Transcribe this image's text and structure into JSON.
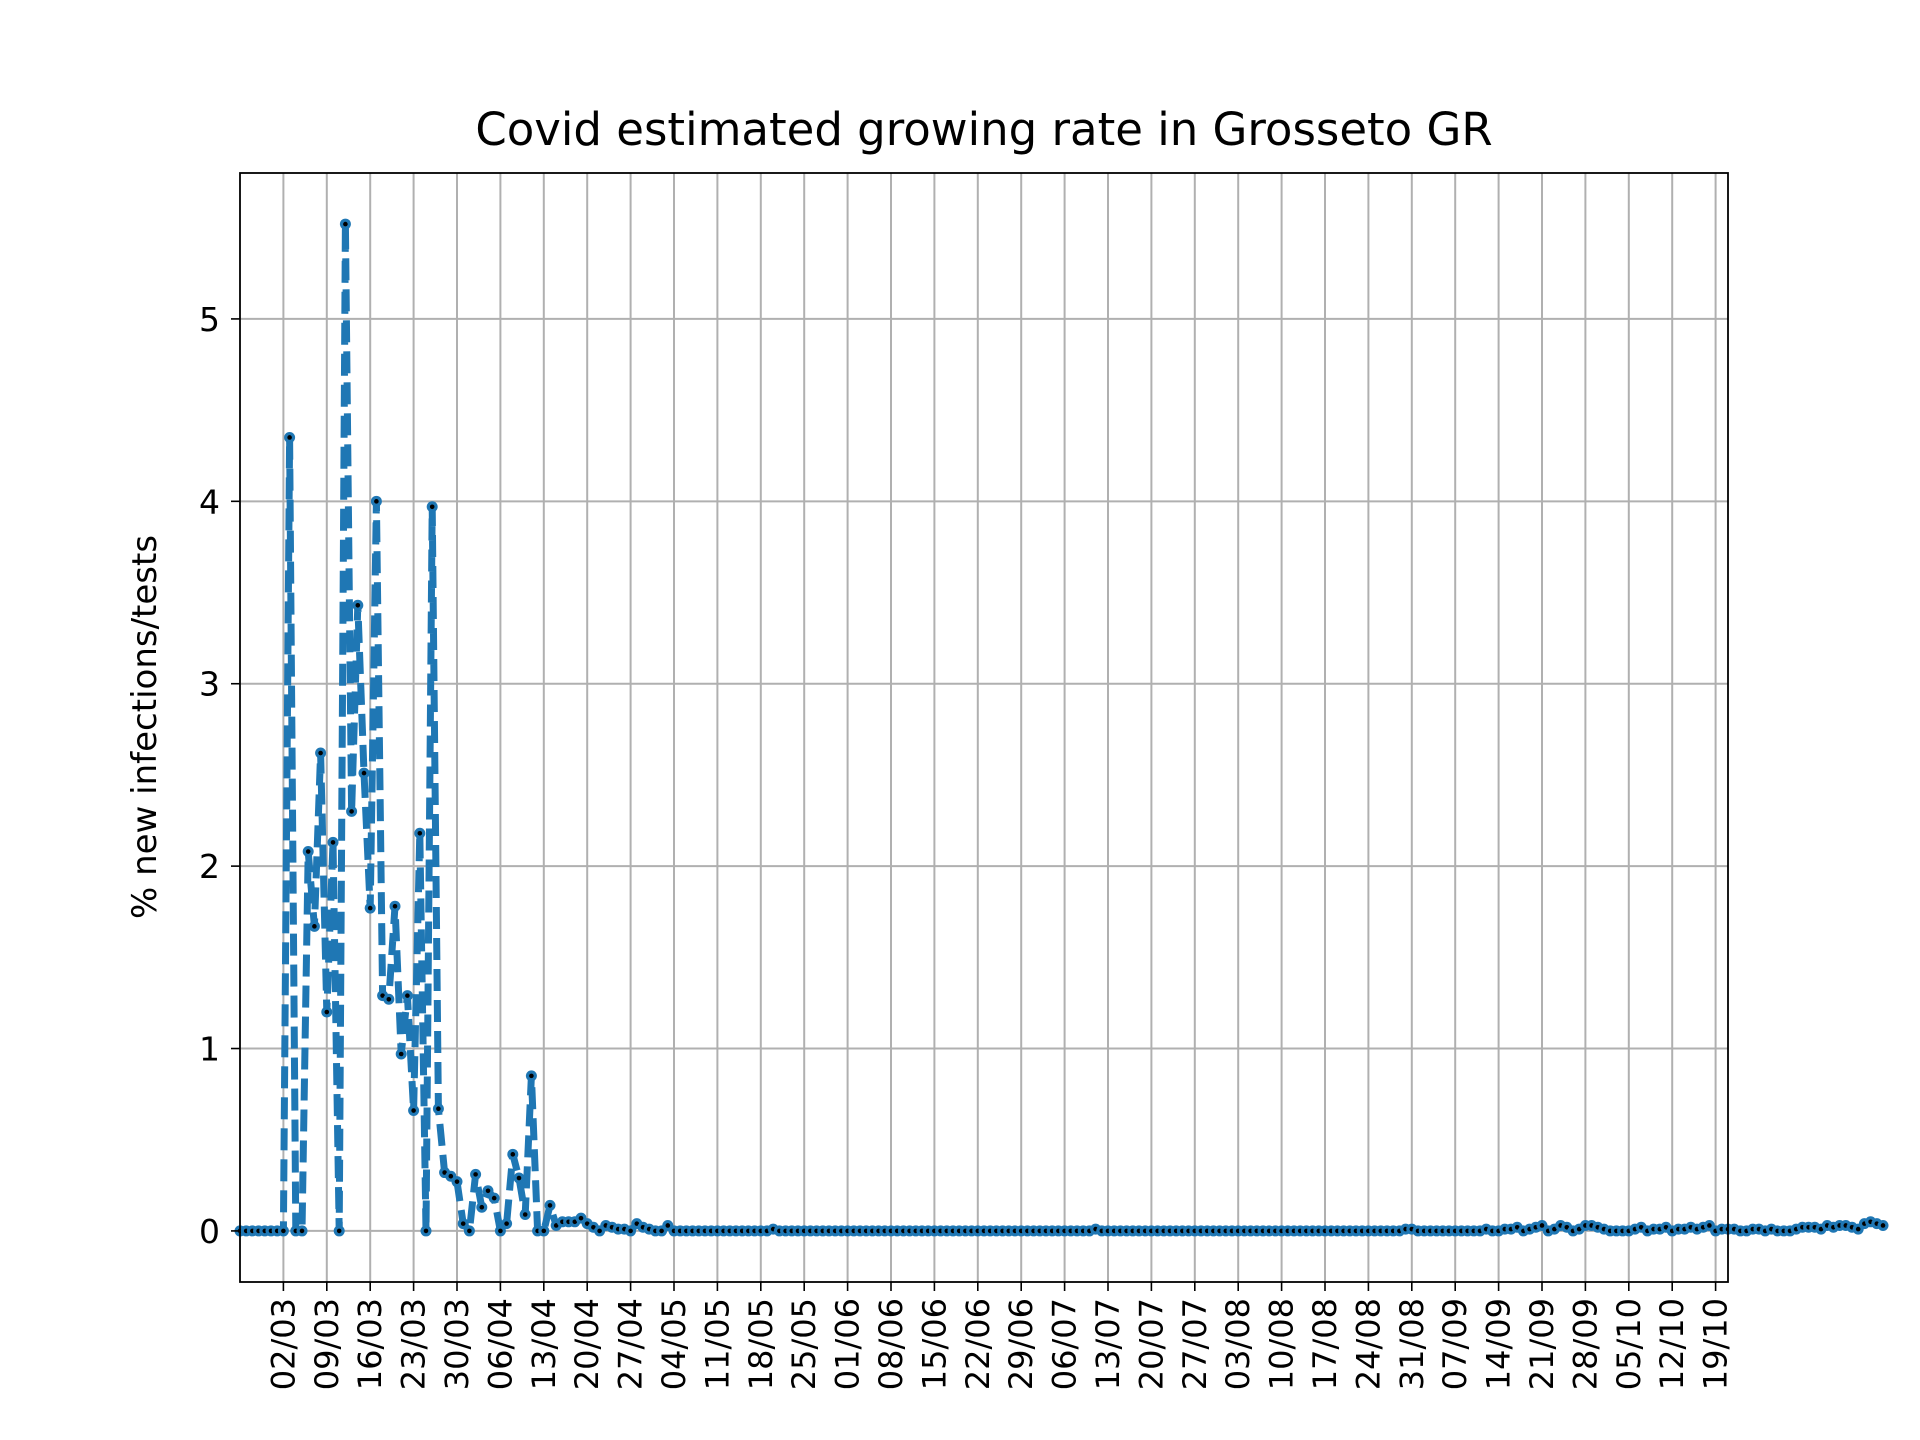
{
  "chart_data": {
    "type": "line",
    "title": "Covid estimated growing rate in Grosseto GR",
    "xlabel": "",
    "ylabel": "% new infections/tests",
    "xlim": [
      "2020-02-24",
      "2020-10-21"
    ],
    "ylim": [
      -0.28,
      5.8
    ],
    "grid": true,
    "line_style": "dashed",
    "color": "#1f77b4",
    "marker_color": "#000000",
    "yticks": [
      0,
      1,
      2,
      3,
      4,
      5
    ],
    "xtick_labels": [
      "02/03",
      "09/03",
      "16/03",
      "23/03",
      "30/03",
      "06/04",
      "13/04",
      "20/04",
      "27/04",
      "04/05",
      "11/05",
      "18/05",
      "25/05",
      "01/06",
      "08/06",
      "15/06",
      "22/06",
      "29/06",
      "06/07",
      "13/07",
      "20/07",
      "27/07",
      "03/08",
      "10/08",
      "17/08",
      "24/08",
      "31/08",
      "07/09",
      "14/09",
      "21/09",
      "28/09",
      "05/10",
      "12/10",
      "19/10"
    ],
    "xtick_dates": [
      "2020-03-02",
      "2020-03-09",
      "2020-03-16",
      "2020-03-23",
      "2020-03-30",
      "2020-04-06",
      "2020-04-13",
      "2020-04-20",
      "2020-04-27",
      "2020-05-04",
      "2020-05-11",
      "2020-05-18",
      "2020-05-25",
      "2020-06-01",
      "2020-06-08",
      "2020-06-15",
      "2020-06-22",
      "2020-06-29",
      "2020-07-06",
      "2020-07-13",
      "2020-07-20",
      "2020-07-27",
      "2020-08-03",
      "2020-08-10",
      "2020-08-17",
      "2020-08-24",
      "2020-08-31",
      "2020-09-07",
      "2020-09-14",
      "2020-09-21",
      "2020-09-28",
      "2020-10-05",
      "2020-10-12",
      "2020-10-19"
    ],
    "series": [
      {
        "x_start": "2020-02-24",
        "x_step_days": 1,
        "values": [
          0,
          0,
          0,
          0,
          0,
          0,
          0,
          0,
          4.35,
          0,
          0,
          2.08,
          1.67,
          2.62,
          1.2,
          2.13,
          0,
          5.52,
          2.3,
          3.43,
          2.51,
          1.77,
          4.0,
          1.29,
          1.27,
          1.78,
          0.97,
          1.29,
          0.66,
          2.18,
          0,
          3.97,
          0.67,
          0.32,
          0.3,
          0.27,
          0.04,
          0,
          0.31,
          0.13,
          0.22,
          0.18,
          0,
          0.04,
          0.42,
          0.29,
          0.09,
          0.85,
          0,
          0,
          0.14,
          0.03,
          0.05,
          0.05,
          0.05,
          0.07,
          0.04,
          0.02,
          0,
          0.03,
          0.02,
          0.01,
          0.01,
          0,
          0.04,
          0.02,
          0.01,
          0,
          0,
          0.03,
          0,
          0,
          0,
          0,
          0,
          0,
          0,
          0,
          0,
          0,
          0,
          0,
          0,
          0,
          0,
          0,
          0.01,
          0,
          0,
          0,
          0,
          0,
          0,
          0,
          0,
          0,
          0,
          0,
          0,
          0,
          0,
          0,
          0,
          0,
          0,
          0,
          0,
          0,
          0,
          0,
          0,
          0,
          0,
          0,
          0,
          0,
          0,
          0,
          0,
          0,
          0,
          0,
          0,
          0,
          0,
          0,
          0,
          0,
          0,
          0,
          0,
          0,
          0,
          0,
          0,
          0,
          0,
          0,
          0.01,
          0,
          0,
          0,
          0,
          0,
          0,
          0,
          0,
          0,
          0,
          0,
          0,
          0,
          0,
          0,
          0,
          0,
          0,
          0,
          0,
          0,
          0,
          0,
          0,
          0,
          0,
          0,
          0,
          0,
          0,
          0,
          0,
          0,
          0,
          0,
          0,
          0,
          0,
          0,
          0,
          0,
          0,
          0,
          0,
          0,
          0,
          0,
          0,
          0,
          0.01,
          0.01,
          0,
          0,
          0,
          0,
          0,
          0,
          0,
          0,
          0,
          0,
          0,
          0.01,
          0,
          0,
          0.01,
          0.01,
          0.02,
          0,
          0.01,
          0.02,
          0.03,
          0,
          0.01,
          0.03,
          0.02,
          0,
          0.01,
          0.03,
          0.03,
          0.02,
          0.01,
          0,
          0,
          0,
          0,
          0.01,
          0.02,
          0,
          0.01,
          0.01,
          0.02,
          0,
          0.01,
          0.01,
          0.02,
          0.01,
          0.02,
          0.03,
          0,
          0.01,
          0.01,
          0.01,
          0,
          0,
          0.01,
          0.01,
          0,
          0.01,
          0,
          0,
          0,
          0.01,
          0.02,
          0.02,
          0.02,
          0.01,
          0.03,
          0.02,
          0.03,
          0.03,
          0.02,
          0.01,
          0.04,
          0.05,
          0.04,
          0.03
        ]
      }
    ]
  }
}
